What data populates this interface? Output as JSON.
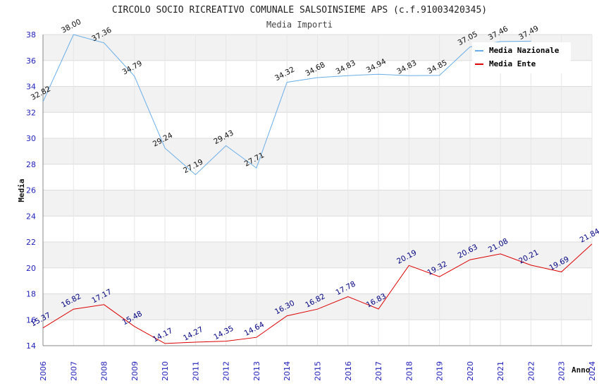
{
  "chart_data": {
    "type": "line",
    "title": "CIRCOLO SOCIO RICREATIVO COMUNALE SALSOINSIEME APS (c.f.91003420345)",
    "subtitle": "Media Importi",
    "xlabel": "Anno",
    "ylabel": "Media",
    "ylim": [
      14,
      38
    ],
    "yticks": [
      "14",
      "16",
      "18",
      "20",
      "22",
      "24",
      "26",
      "28",
      "30",
      "32",
      "34",
      "36",
      "38"
    ],
    "x": [
      "2006",
      "2007",
      "2008",
      "2009",
      "2010",
      "2011",
      "2012",
      "2013",
      "2014",
      "2015",
      "2016",
      "2017",
      "2018",
      "2019",
      "2020",
      "2021",
      "2022",
      "2023",
      "2024"
    ],
    "grid": "horizontal bands",
    "legend_position": "top-right",
    "series": [
      {
        "name": "Media Nazionale",
        "color": "#6aaee8",
        "label_color": "#111111",
        "values": [
          32.82,
          38.0,
          37.36,
          34.79,
          29.24,
          27.19,
          29.43,
          27.71,
          34.32,
          34.68,
          34.83,
          34.94,
          34.83,
          34.85,
          37.05,
          37.46,
          37.49,
          null,
          null
        ],
        "labels": [
          "32.82",
          "38.00",
          "37.36",
          "34.79",
          "29.24",
          "27.19",
          "29.43",
          "27.71",
          "34.32",
          "34.68",
          "34.83",
          "34.94",
          "34.83",
          "34.85",
          "37.05",
          "37.46",
          "37.49",
          "",
          ""
        ]
      },
      {
        "name": "Media Ente",
        "color": "#dd0000",
        "label_color": "#000080",
        "values": [
          15.37,
          16.82,
          17.17,
          15.48,
          14.17,
          14.27,
          14.35,
          14.64,
          16.3,
          16.82,
          17.78,
          16.83,
          20.19,
          19.32,
          20.63,
          21.08,
          20.21,
          19.69,
          21.84
        ],
        "labels": [
          "15.37",
          "16.82",
          "17.17",
          "15.48",
          "14.17",
          "14.27",
          "14.35",
          "14.64",
          "16.30",
          "16.82",
          "17.78",
          "16.83",
          "20.19",
          "19.32",
          "20.63",
          "21.08",
          "20.21",
          "19.69",
          "21.84"
        ]
      }
    ]
  }
}
